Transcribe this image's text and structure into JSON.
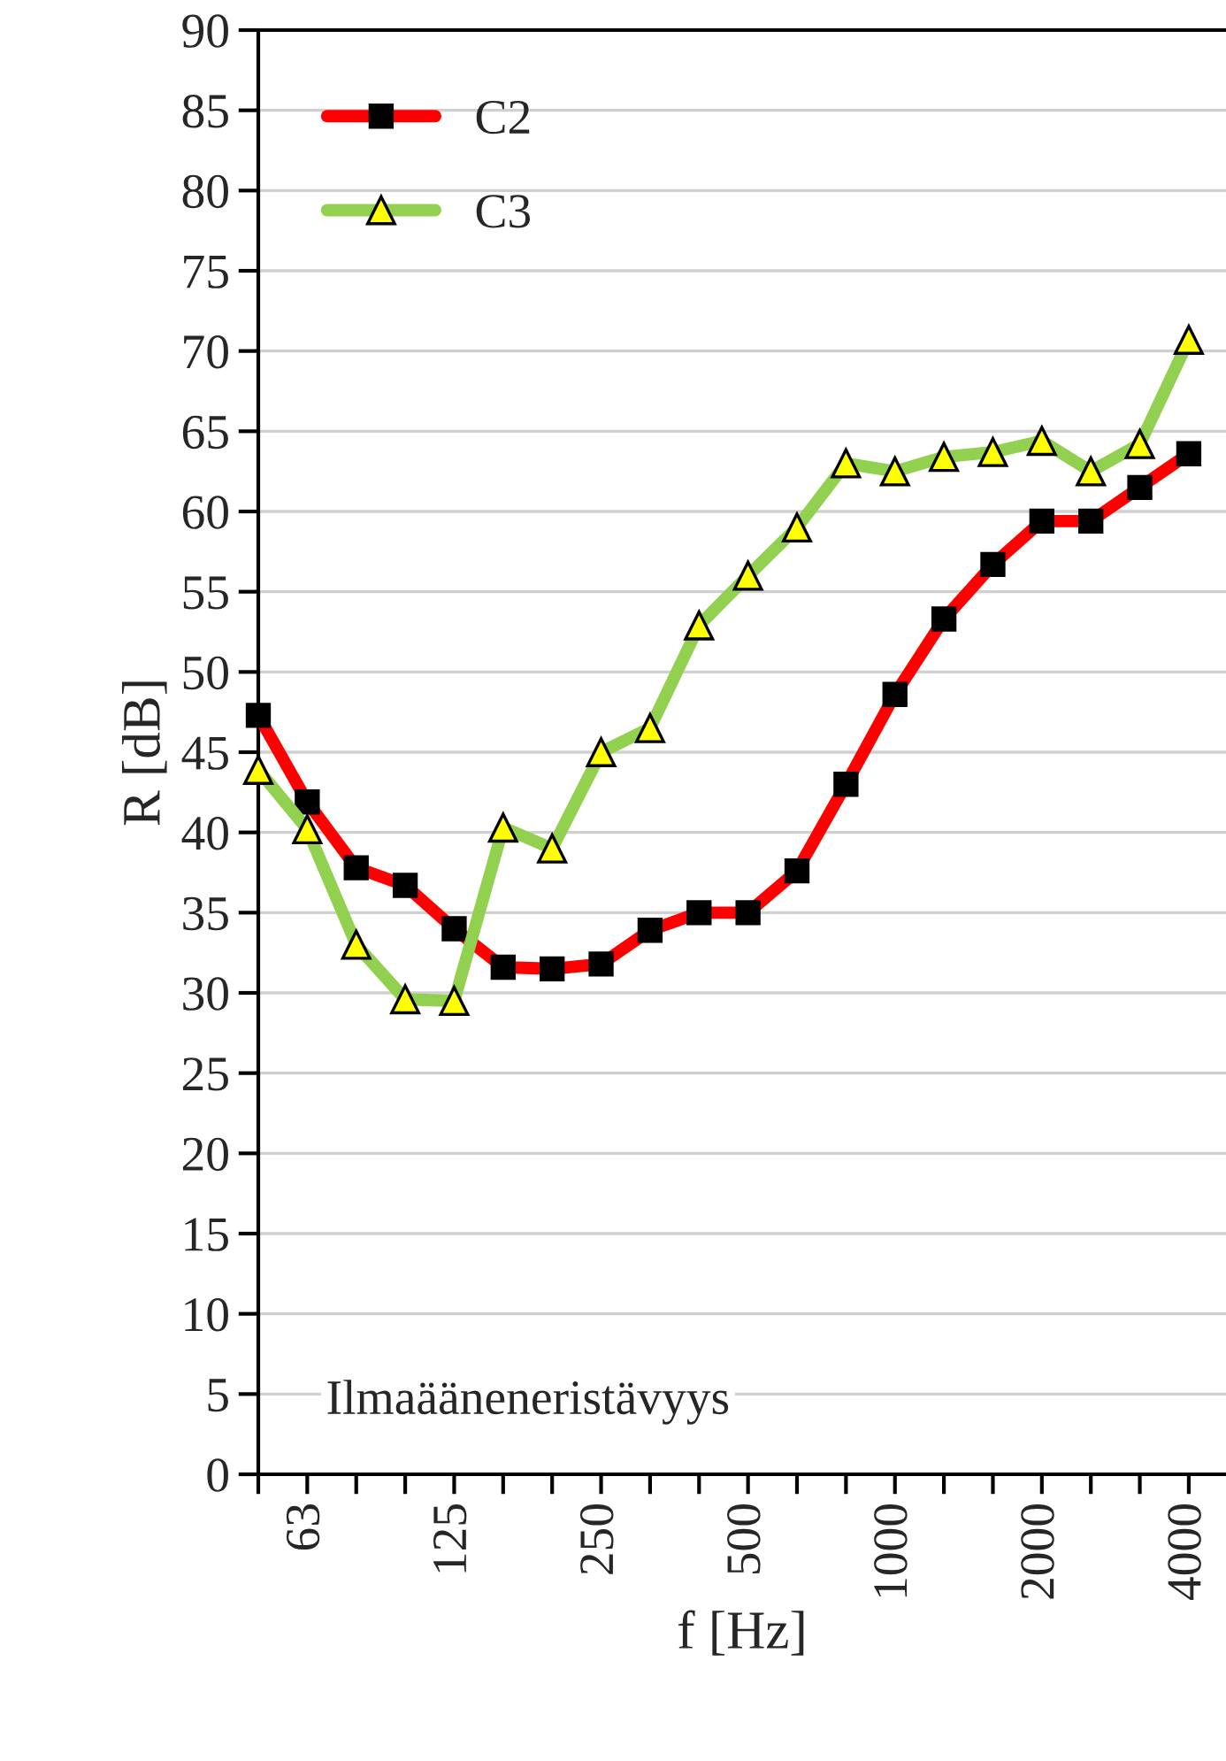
{
  "chart_data": {
    "type": "line",
    "xlabel": "f [Hz]",
    "ylabel": "R [dB]",
    "categories": [
      null,
      "63",
      null,
      null,
      "125",
      null,
      null,
      "250",
      null,
      null,
      "500",
      null,
      null,
      "1000",
      null,
      null,
      "2000",
      null,
      null,
      "4000"
    ],
    "series": [
      {
        "name": "C2",
        "color": "#ff0000",
        "marker": "square",
        "values": [
          47.3,
          41.9,
          37.8,
          36.7,
          34.0,
          31.6,
          31.5,
          31.8,
          33.9,
          35.0,
          35.0,
          37.6,
          43.0,
          48.6,
          53.3,
          56.7,
          59.4,
          59.4,
          61.5,
          63.6
        ]
      },
      {
        "name": "C3",
        "color": "#92d050",
        "marker": "triangle",
        "values": [
          43.9,
          40.2,
          33.0,
          29.6,
          29.5,
          40.3,
          39.0,
          45.0,
          46.5,
          52.9,
          56.0,
          59.0,
          63.0,
          62.5,
          63.4,
          63.7,
          64.4,
          62.5,
          64.2,
          70.7
        ]
      }
    ],
    "ylim": [
      0,
      90
    ],
    "yticks": [
      0,
      5,
      10,
      15,
      20,
      25,
      30,
      35,
      40,
      45,
      50,
      55,
      60,
      65,
      70,
      75,
      80,
      85,
      90
    ],
    "grid": "y",
    "legend": "top left",
    "annotations": [
      "Ilmaääneneristävyys"
    ]
  }
}
